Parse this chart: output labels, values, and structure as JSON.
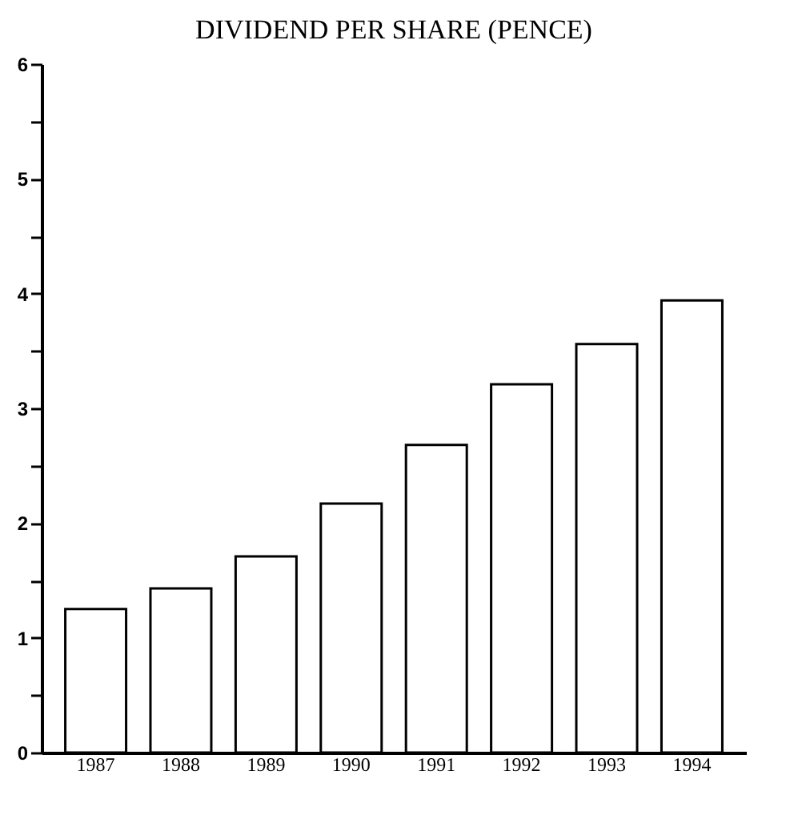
{
  "chart_data": {
    "type": "bar",
    "title": "DIVIDEND PER SHARE (PENCE)",
    "categories": [
      "1987",
      "1988",
      "1989",
      "1990",
      "1991",
      "1992",
      "1993",
      "1994"
    ],
    "values": [
      1.25,
      1.43,
      1.71,
      2.17,
      2.68,
      3.21,
      3.56,
      3.94
    ],
    "color": "#ffffff",
    "ylim": [
      0,
      6
    ],
    "yticks": [
      0,
      {
        "value": 0.5,
        "label": null
      },
      1,
      {
        "value": 1.5,
        "label": null
      },
      2,
      {
        "value": 2.5,
        "label": null
      },
      3,
      {
        "value": 3.5,
        "label": null
      },
      4,
      {
        "value": 4.5,
        "label": null
      },
      5,
      {
        "value": 5.5,
        "label": null
      },
      6
    ],
    "grid": false
  }
}
